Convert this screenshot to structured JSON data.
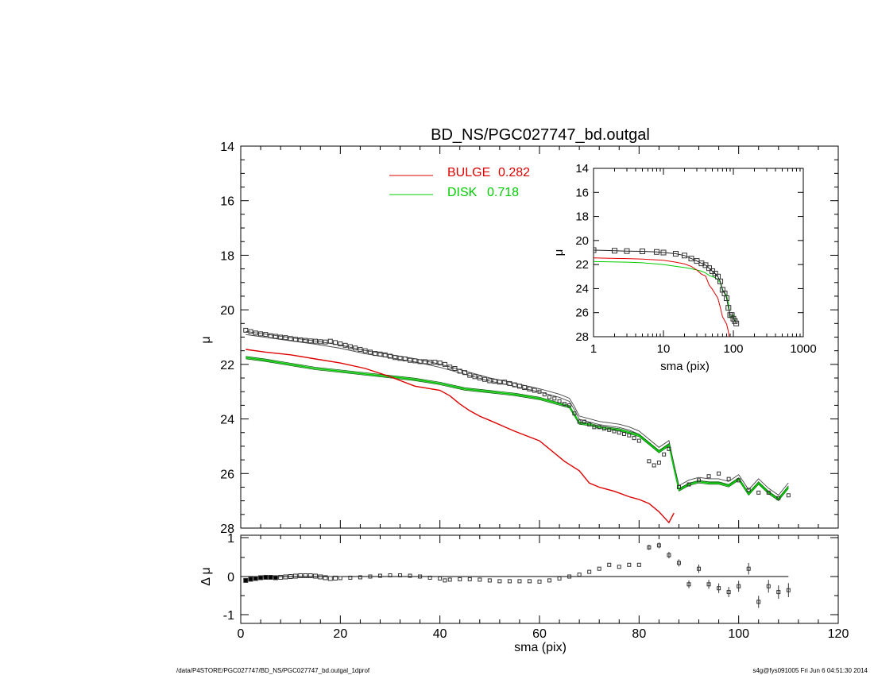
{
  "chart_data": [
    {
      "type": "line",
      "panel": "main",
      "title": "BD_NS/PGC027747_bd.outgal",
      "xlabel": "",
      "ylabel": "μ",
      "xlim": [
        0,
        120
      ],
      "ylim": [
        28,
        14
      ],
      "x_ticks": [
        0,
        20,
        40,
        60,
        80,
        100,
        120
      ],
      "y_ticks": [
        14,
        16,
        18,
        20,
        22,
        24,
        26,
        28
      ],
      "legend": [
        {
          "name": "BULGE",
          "value": "0.282",
          "color": "#dd0000"
        },
        {
          "name": "DISK",
          "value": "0.718",
          "color": "#00cc00"
        }
      ],
      "series": [
        {
          "name": "data",
          "style": "square-markers",
          "color": "#333333",
          "x": [
            1,
            2,
            3,
            4,
            5,
            6,
            7,
            8,
            9,
            10,
            11,
            12,
            13,
            14,
            15,
            16,
            17,
            18,
            19,
            20,
            21,
            22,
            23,
            24,
            25,
            26,
            27,
            28,
            29,
            30,
            31,
            32,
            33,
            34,
            35,
            36,
            37,
            38,
            39,
            40,
            41,
            42,
            43,
            44,
            45,
            46,
            47,
            48,
            49,
            50,
            51,
            52,
            53,
            54,
            55,
            56,
            57,
            58,
            59,
            60,
            61,
            62,
            63,
            64,
            65,
            66,
            67,
            68,
            69,
            70,
            71,
            72,
            73,
            74,
            75,
            76,
            77,
            78,
            79,
            80,
            82,
            83,
            84,
            85,
            86,
            88,
            90,
            92,
            94,
            96,
            98,
            100,
            102,
            104,
            106,
            108,
            110
          ],
          "y": [
            20.75,
            20.8,
            20.85,
            20.88,
            20.9,
            20.95,
            20.97,
            21.0,
            21.02,
            21.05,
            21.08,
            21.1,
            21.12,
            21.14,
            21.15,
            21.17,
            21.18,
            21.15,
            21.2,
            21.25,
            21.3,
            21.35,
            21.4,
            21.45,
            21.5,
            21.55,
            21.6,
            21.62,
            21.65,
            21.7,
            21.75,
            21.78,
            21.8,
            21.85,
            21.87,
            21.9,
            21.9,
            21.92,
            21.92,
            21.95,
            22.0,
            22.1,
            22.15,
            22.25,
            22.3,
            22.4,
            22.45,
            22.5,
            22.55,
            22.6,
            22.62,
            22.65,
            22.65,
            22.7,
            22.75,
            22.8,
            22.85,
            22.9,
            22.95,
            23.0,
            23.1,
            23.2,
            23.25,
            23.35,
            23.45,
            23.5,
            23.8,
            24.1,
            24.1,
            24.2,
            24.3,
            24.3,
            24.35,
            24.4,
            24.45,
            24.5,
            24.55,
            24.6,
            24.7,
            24.8,
            25.55,
            25.7,
            25.6,
            25.3,
            25.1,
            26.5,
            26.4,
            26.25,
            26.1,
            26.0,
            26.2,
            26.25,
            26.6,
            26.7,
            26.7,
            26.9,
            26.8
          ]
        },
        {
          "name": "model",
          "style": "line",
          "color": "#444444",
          "x": [
            1,
            5,
            10,
            15,
            20,
            25,
            30,
            35,
            40,
            45,
            50,
            55,
            60,
            62,
            64,
            66,
            67,
            68,
            70,
            72,
            74,
            76,
            78,
            80,
            82,
            84,
            86,
            87,
            88,
            90,
            92,
            94,
            96,
            98,
            100,
            102,
            104,
            106,
            108,
            110
          ],
          "y": [
            20.85,
            20.95,
            21.08,
            21.2,
            21.35,
            21.55,
            21.7,
            21.85,
            22.05,
            22.3,
            22.55,
            22.75,
            22.95,
            23.05,
            23.15,
            23.3,
            23.6,
            23.95,
            24.05,
            24.15,
            24.2,
            24.25,
            24.35,
            24.5,
            24.8,
            25.1,
            24.85,
            25.7,
            26.5,
            26.3,
            26.2,
            26.25,
            26.25,
            26.35,
            26.1,
            26.65,
            26.25,
            26.6,
            26.85,
            26.4
          ]
        },
        {
          "name": "BULGE",
          "style": "line",
          "color": "#dd0000",
          "x": [
            1,
            5,
            10,
            15,
            20,
            25,
            30,
            35,
            40,
            42,
            44,
            46,
            48,
            50,
            55,
            60,
            65,
            68,
            70,
            72,
            75,
            78,
            80,
            82,
            84,
            85,
            86,
            87
          ],
          "y": [
            21.45,
            21.55,
            21.65,
            21.8,
            21.95,
            22.15,
            22.45,
            22.8,
            22.95,
            23.15,
            23.45,
            23.7,
            23.9,
            24.05,
            24.45,
            24.8,
            25.55,
            25.9,
            26.35,
            26.5,
            26.65,
            26.85,
            26.95,
            27.1,
            27.4,
            27.6,
            27.8,
            27.45
          ]
        },
        {
          "name": "DISK",
          "style": "line",
          "color": "#00cc00",
          "x": [
            1,
            5,
            10,
            15,
            20,
            25,
            30,
            35,
            40,
            45,
            50,
            55,
            60,
            62,
            64,
            66,
            67,
            68,
            70,
            72,
            74,
            76,
            78,
            80,
            82,
            84,
            86,
            87,
            88,
            90,
            92,
            94,
            96,
            98,
            100,
            102,
            104,
            106,
            108,
            110
          ],
          "y": [
            21.75,
            21.85,
            22.0,
            22.15,
            22.25,
            22.35,
            22.45,
            22.55,
            22.7,
            22.9,
            23.0,
            23.1,
            23.25,
            23.35,
            23.45,
            23.55,
            23.85,
            24.15,
            24.2,
            24.3,
            24.35,
            24.4,
            24.5,
            24.6,
            24.9,
            25.2,
            24.95,
            25.8,
            26.6,
            26.4,
            26.3,
            26.35,
            26.35,
            26.45,
            26.2,
            26.75,
            26.35,
            26.7,
            26.95,
            26.5
          ]
        }
      ]
    },
    {
      "type": "scatter",
      "panel": "residual",
      "xlabel": "sma (pix)",
      "ylabel": "Δ μ",
      "xlim": [
        0,
        120
      ],
      "ylim": [
        -1,
        1
      ],
      "x_ticks": [
        0,
        20,
        40,
        60,
        80,
        100,
        120
      ],
      "y_ticks": [
        -1,
        0,
        1
      ],
      "series": [
        {
          "name": "residual",
          "color": "#333333",
          "x": [
            1,
            2,
            3,
            4,
            5,
            6,
            7,
            8,
            9,
            10,
            11,
            12,
            13,
            14,
            15,
            16,
            17,
            18,
            19,
            20,
            22,
            24,
            26,
            28,
            30,
            32,
            34,
            36,
            38,
            40,
            41,
            42,
            44,
            46,
            48,
            50,
            52,
            54,
            56,
            58,
            60,
            62,
            64,
            66,
            68,
            70,
            72,
            74,
            76,
            78,
            80,
            82,
            84,
            86,
            88,
            90,
            92,
            94,
            96,
            98,
            100,
            102,
            104,
            106,
            108,
            110
          ],
          "y": [
            -0.1,
            -0.07,
            -0.05,
            -0.03,
            -0.02,
            -0.02,
            -0.03,
            -0.02,
            -0.01,
            0.0,
            0.01,
            0.02,
            0.02,
            0.02,
            0.01,
            -0.01,
            -0.03,
            -0.05,
            -0.04,
            -0.04,
            -0.03,
            -0.02,
            0.0,
            0.02,
            0.03,
            0.03,
            0.02,
            0.0,
            -0.03,
            -0.05,
            -0.1,
            -0.08,
            -0.07,
            -0.07,
            -0.08,
            -0.1,
            -0.12,
            -0.12,
            -0.12,
            -0.12,
            -0.13,
            -0.1,
            -0.05,
            0.0,
            0.05,
            0.12,
            0.2,
            0.3,
            0.25,
            0.3,
            0.3,
            0.75,
            0.8,
            0.55,
            0.35,
            -0.2,
            0.2,
            -0.2,
            -0.3,
            -0.4,
            -0.25,
            0.2,
            -0.65,
            -0.25,
            -0.4,
            -0.35
          ]
        }
      ]
    },
    {
      "type": "line",
      "panel": "inset",
      "xlabel": "sma (pix)",
      "ylabel": "μ",
      "xscale": "log",
      "xlim": [
        1,
        1000
      ],
      "ylim": [
        28,
        14
      ],
      "x_ticks": [
        "1",
        "10",
        "100",
        "1000"
      ],
      "y_ticks": [
        14,
        16,
        18,
        20,
        22,
        24,
        26,
        28
      ],
      "series": [
        {
          "name": "data",
          "color": "#333333",
          "x": [
            1,
            2,
            3,
            5,
            8,
            10,
            15,
            20,
            25,
            30,
            35,
            40,
            45,
            50,
            55,
            60,
            65,
            70,
            75,
            80,
            85,
            90,
            95,
            100,
            105,
            110
          ],
          "y": [
            20.8,
            20.85,
            20.88,
            20.9,
            20.95,
            21.0,
            21.1,
            21.25,
            21.5,
            21.7,
            21.9,
            22.05,
            22.3,
            22.55,
            22.75,
            23.0,
            23.4,
            24.1,
            24.4,
            24.8,
            25.6,
            26.2,
            26.2,
            26.5,
            26.7,
            26.9
          ]
        },
        {
          "name": "BULGE",
          "color": "#dd0000",
          "x": [
            1,
            3,
            5,
            10,
            15,
            20,
            25,
            30,
            35,
            40,
            45,
            50,
            55,
            60,
            65,
            70,
            75,
            80,
            85,
            87
          ],
          "y": [
            21.45,
            21.5,
            21.55,
            21.65,
            21.8,
            21.95,
            22.15,
            22.45,
            22.8,
            22.95,
            23.7,
            24.05,
            24.45,
            24.8,
            25.55,
            26.35,
            26.65,
            26.95,
            27.6,
            28.0
          ]
        },
        {
          "name": "DISK",
          "color": "#00cc00",
          "x": [
            1,
            3,
            5,
            10,
            15,
            20,
            25,
            30,
            35,
            40,
            45,
            50,
            55,
            60,
            65,
            70,
            75,
            80,
            85,
            90,
            95,
            100,
            105,
            110
          ],
          "y": [
            21.75,
            21.8,
            21.85,
            22.0,
            22.15,
            22.25,
            22.35,
            22.45,
            22.55,
            22.7,
            22.9,
            23.0,
            23.1,
            23.25,
            23.5,
            24.2,
            24.35,
            24.6,
            25.2,
            26.4,
            26.35,
            26.2,
            26.7,
            26.5
          ]
        }
      ]
    }
  ],
  "footer": {
    "left": "/data/P4STORE/PGC027747/BD_NS/PGC027747_bd.outgal_1dprof",
    "right": "s4g@fys091005  Fri Jun  6 04:51:30 2014"
  }
}
